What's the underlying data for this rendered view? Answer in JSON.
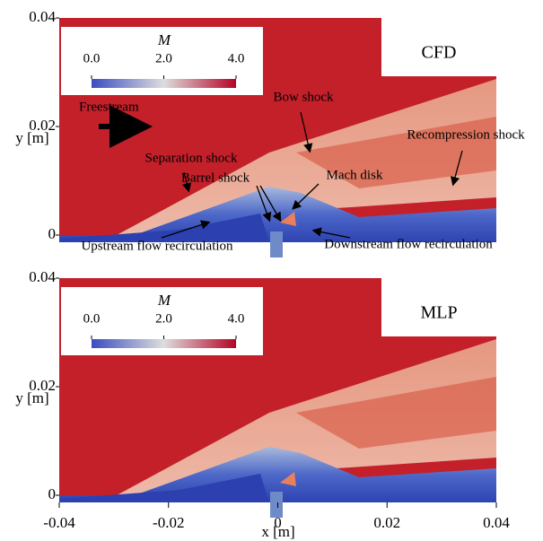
{
  "chart_data": [
    {
      "type": "contour",
      "label": "CFD",
      "xlim": [
        -0.04,
        0.04
      ],
      "ylim": [
        0,
        0.04
      ],
      "yticks": [
        0,
        0.02,
        0.04
      ],
      "ylabel": "y [m]",
      "colorbar": {
        "title": "M",
        "lim": [
          0,
          4
        ],
        "ticks": [
          {
            "value": 0,
            "label": "0.0"
          },
          {
            "value": 2,
            "label": "2.0"
          },
          {
            "value": 4,
            "label": "4.0"
          }
        ]
      },
      "annotations": [
        "Freestream",
        "Bow shock",
        "Recompression shock",
        "Separation shock",
        "Barrel shock",
        "Mach disk",
        "Upstream flow recirculation",
        "Downstream flow recirculation"
      ]
    },
    {
      "type": "contour",
      "label": "MLP",
      "xlim": [
        -0.04,
        0.04
      ],
      "ylim": [
        0,
        0.04
      ],
      "yticks": [
        0,
        0.02,
        0.04
      ],
      "ylabel": "y [m]",
      "xlabel": "x [m]",
      "xticks": [
        -0.04,
        -0.02,
        0,
        0.02,
        0.04
      ],
      "colorbar": {
        "title": "M",
        "lim": [
          0,
          4
        ],
        "ticks": [
          {
            "value": 0,
            "label": "0.0"
          },
          {
            "value": 2,
            "label": "2.0"
          },
          {
            "value": 4,
            "label": "4.0"
          }
        ]
      }
    }
  ]
}
